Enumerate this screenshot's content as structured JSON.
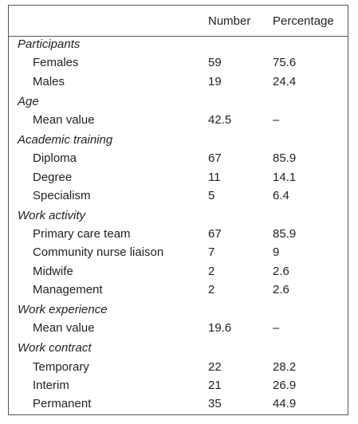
{
  "table": {
    "columns": [
      "Number",
      "Percentage"
    ],
    "sections": [
      {
        "title": "Participants",
        "rows": [
          {
            "label": "Females",
            "number": 59,
            "percentage": 75.6
          },
          {
            "label": "Males",
            "number": 19,
            "percentage": 24.4
          }
        ]
      },
      {
        "title": "Age",
        "rows": [
          {
            "label": "Mean value",
            "number": 42.5,
            "percentage": "–"
          }
        ]
      },
      {
        "title": "Academic training",
        "rows": [
          {
            "label": "Diploma",
            "number": 67,
            "percentage": 85.9
          },
          {
            "label": "Degree",
            "number": 11,
            "percentage": 14.1
          },
          {
            "label": "Specialism",
            "number": 5,
            "percentage": 6.4
          }
        ]
      },
      {
        "title": "Work activity",
        "rows": [
          {
            "label": "Primary care team",
            "number": 67,
            "percentage": 85.9
          },
          {
            "label": "Community nurse liaison",
            "number": 7,
            "percentage": 9
          },
          {
            "label": "Midwife",
            "number": 2,
            "percentage": 2.6
          },
          {
            "label": "Management",
            "number": 2,
            "percentage": 2.6
          }
        ]
      },
      {
        "title": "Work experience",
        "rows": [
          {
            "label": "Mean value",
            "number": 19.6,
            "percentage": "–"
          }
        ]
      },
      {
        "title": "Work contract",
        "rows": [
          {
            "label": "Temporary",
            "number": 22,
            "percentage": 28.2
          },
          {
            "label": "Interim",
            "number": 21,
            "percentage": 26.9
          },
          {
            "label": "Permanent",
            "number": 35,
            "percentage": 44.9
          }
        ]
      }
    ]
  }
}
